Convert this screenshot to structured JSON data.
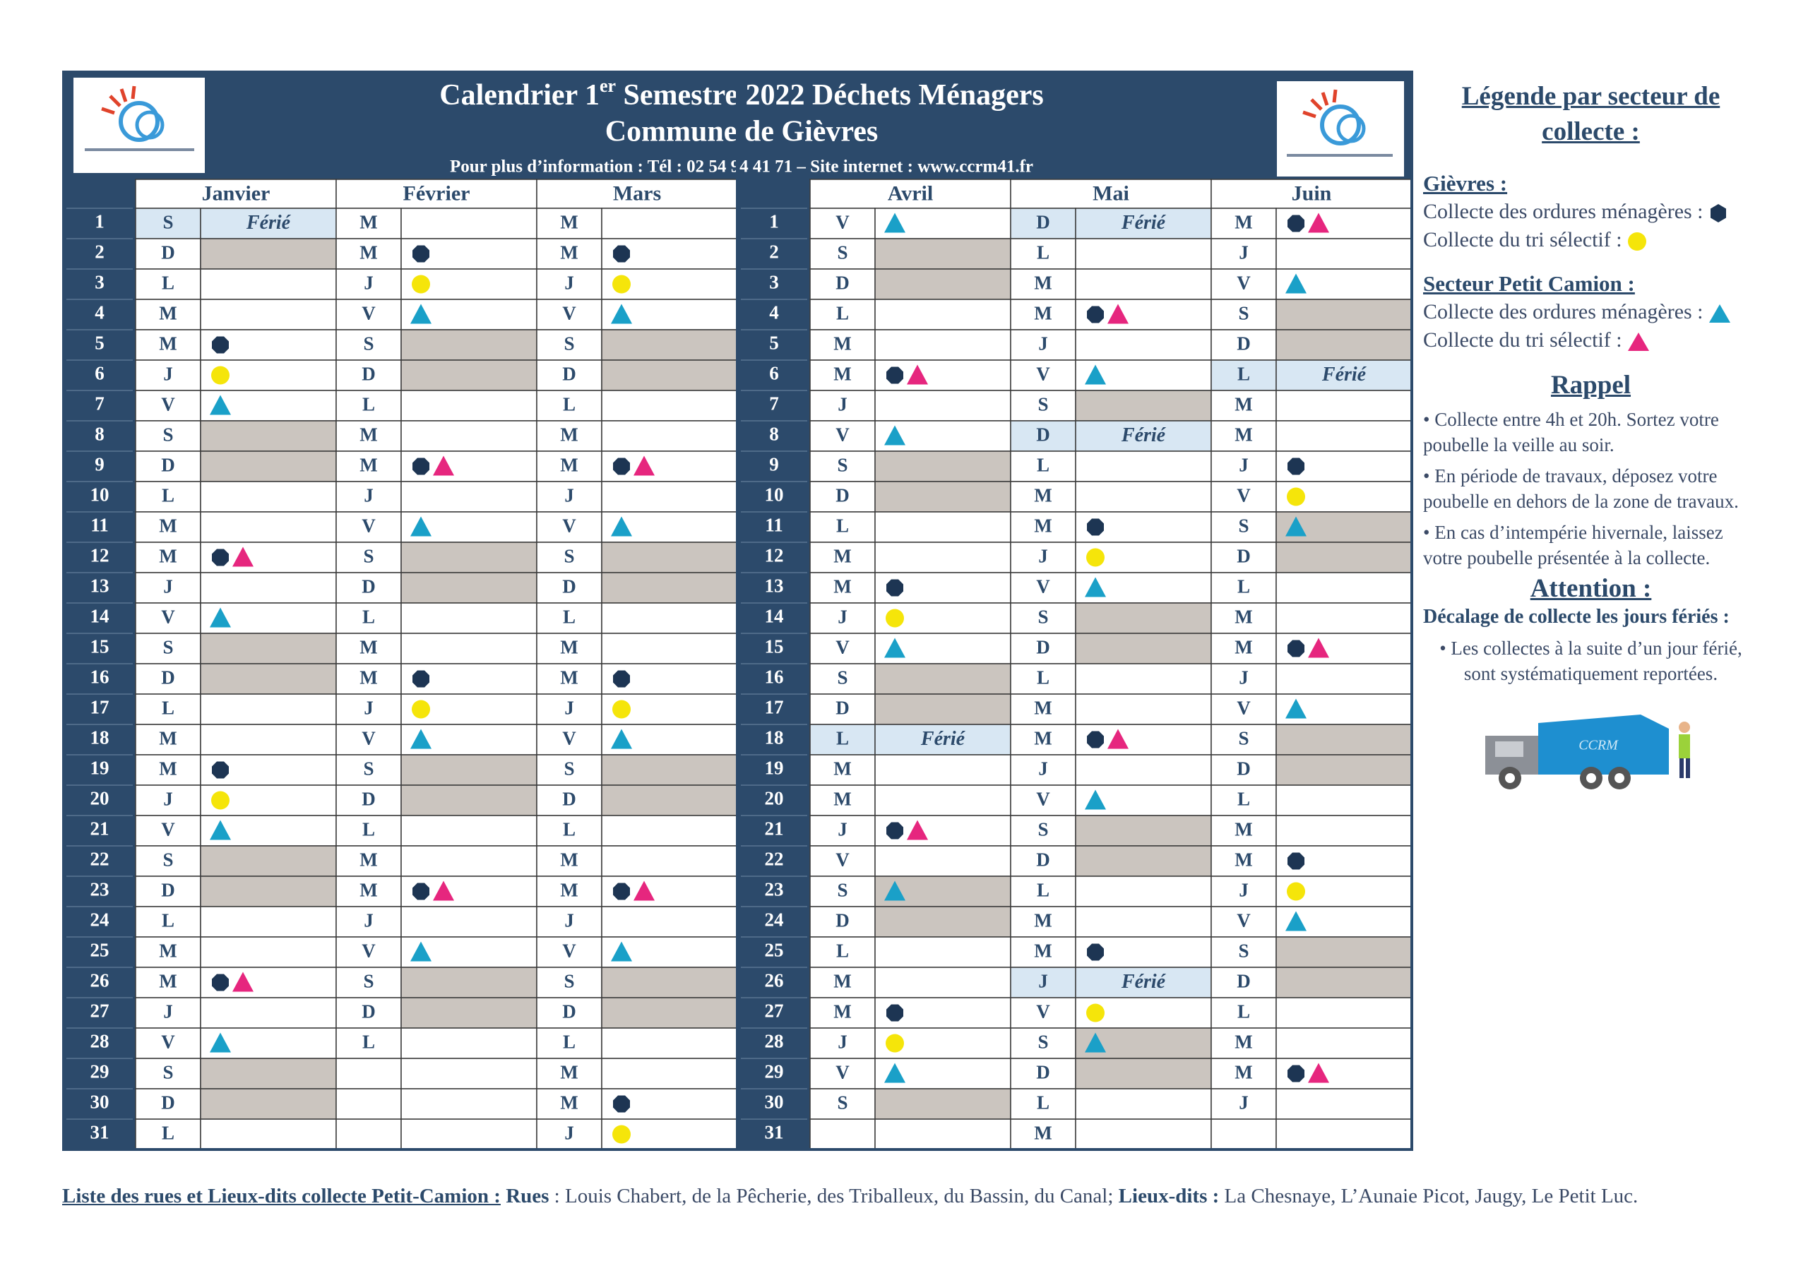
{
  "header": {
    "title_pre": "Calendrier 1",
    "title_sup": "er",
    "title_post": " Semestre 2022 Déchets Ménagers",
    "title_line2": "Commune de Gièvres",
    "info": "Pour plus d’information : Tél : 02 54 94 41 71 – Site internet : www.ccrm41.fr"
  },
  "row_numbers": [
    "1",
    "2",
    "3",
    "4",
    "5",
    "6",
    "7",
    "8",
    "9",
    "10",
    "11",
    "12",
    "13",
    "14",
    "15",
    "16",
    "17",
    "18",
    "19",
    "20",
    "21",
    "22",
    "23",
    "24",
    "25",
    "26",
    "27",
    "28",
    "29",
    "30",
    "31"
  ],
  "halves": [
    {
      "months": [
        {
          "name": "Janvier",
          "days": [
            {
              "letter": "S",
              "note": "Férié"
            },
            {
              "letter": "D"
            },
            {
              "letter": "L"
            },
            {
              "letter": "M"
            },
            {
              "letter": "M",
              "marks": [
                "hexagon"
              ]
            },
            {
              "letter": "J",
              "marks": [
                "circle"
              ]
            },
            {
              "letter": "V",
              "marks": [
                "triangle-blue"
              ]
            },
            {
              "letter": "S"
            },
            {
              "letter": "D"
            },
            {
              "letter": "L"
            },
            {
              "letter": "M"
            },
            {
              "letter": "M",
              "marks": [
                "hexagon",
                "triangle-pink"
              ]
            },
            {
              "letter": "J"
            },
            {
              "letter": "V",
              "marks": [
                "triangle-blue"
              ]
            },
            {
              "letter": "S"
            },
            {
              "letter": "D"
            },
            {
              "letter": "L"
            },
            {
              "letter": "M"
            },
            {
              "letter": "M",
              "marks": [
                "hexagon"
              ]
            },
            {
              "letter": "J",
              "marks": [
                "circle"
              ]
            },
            {
              "letter": "V",
              "marks": [
                "triangle-blue"
              ]
            },
            {
              "letter": "S"
            },
            {
              "letter": "D"
            },
            {
              "letter": "L"
            },
            {
              "letter": "M"
            },
            {
              "letter": "M",
              "marks": [
                "hexagon",
                "triangle-pink"
              ]
            },
            {
              "letter": "J"
            },
            {
              "letter": "V",
              "marks": [
                "triangle-blue"
              ]
            },
            {
              "letter": "S"
            },
            {
              "letter": "D"
            },
            {
              "letter": "L"
            }
          ]
        },
        {
          "name": "Février",
          "days": [
            {
              "letter": "M"
            },
            {
              "letter": "M",
              "marks": [
                "hexagon"
              ]
            },
            {
              "letter": "J",
              "marks": [
                "circle"
              ]
            },
            {
              "letter": "V",
              "marks": [
                "triangle-blue"
              ]
            },
            {
              "letter": "S"
            },
            {
              "letter": "D"
            },
            {
              "letter": "L"
            },
            {
              "letter": "M"
            },
            {
              "letter": "M",
              "marks": [
                "hexagon",
                "triangle-pink"
              ]
            },
            {
              "letter": "J"
            },
            {
              "letter": "V",
              "marks": [
                "triangle-blue"
              ]
            },
            {
              "letter": "S"
            },
            {
              "letter": "D"
            },
            {
              "letter": "L"
            },
            {
              "letter": "M"
            },
            {
              "letter": "M",
              "marks": [
                "hexagon"
              ]
            },
            {
              "letter": "J",
              "marks": [
                "circle"
              ]
            },
            {
              "letter": "V",
              "marks": [
                "triangle-blue"
              ]
            },
            {
              "letter": "S"
            },
            {
              "letter": "D"
            },
            {
              "letter": "L"
            },
            {
              "letter": "M"
            },
            {
              "letter": "M",
              "marks": [
                "hexagon",
                "triangle-pink"
              ]
            },
            {
              "letter": "J"
            },
            {
              "letter": "V",
              "marks": [
                "triangle-blue"
              ]
            },
            {
              "letter": "S"
            },
            {
              "letter": "D"
            },
            {
              "letter": "L"
            }
          ]
        },
        {
          "name": "Mars",
          "days": [
            {
              "letter": "M"
            },
            {
              "letter": "M",
              "marks": [
                "hexagon"
              ]
            },
            {
              "letter": "J",
              "marks": [
                "circle"
              ]
            },
            {
              "letter": "V",
              "marks": [
                "triangle-blue"
              ]
            },
            {
              "letter": "S"
            },
            {
              "letter": "D"
            },
            {
              "letter": "L"
            },
            {
              "letter": "M"
            },
            {
              "letter": "M",
              "marks": [
                "hexagon",
                "triangle-pink"
              ]
            },
            {
              "letter": "J"
            },
            {
              "letter": "V",
              "marks": [
                "triangle-blue"
              ]
            },
            {
              "letter": "S"
            },
            {
              "letter": "D"
            },
            {
              "letter": "L"
            },
            {
              "letter": "M"
            },
            {
              "letter": "M",
              "marks": [
                "hexagon"
              ]
            },
            {
              "letter": "J",
              "marks": [
                "circle"
              ]
            },
            {
              "letter": "V",
              "marks": [
                "triangle-blue"
              ]
            },
            {
              "letter": "S"
            },
            {
              "letter": "D"
            },
            {
              "letter": "L"
            },
            {
              "letter": "M"
            },
            {
              "letter": "M",
              "marks": [
                "hexagon",
                "triangle-pink"
              ]
            },
            {
              "letter": "J"
            },
            {
              "letter": "V",
              "marks": [
                "triangle-blue"
              ]
            },
            {
              "letter": "S"
            },
            {
              "letter": "D"
            },
            {
              "letter": "L"
            },
            {
              "letter": "M"
            },
            {
              "letter": "M",
              "marks": [
                "hexagon"
              ]
            },
            {
              "letter": "J",
              "marks": [
                "circle"
              ]
            }
          ]
        }
      ]
    },
    {
      "months": [
        {
          "name": "Avril",
          "days": [
            {
              "letter": "V",
              "marks": [
                "triangle-blue"
              ]
            },
            {
              "letter": "S"
            },
            {
              "letter": "D"
            },
            {
              "letter": "L"
            },
            {
              "letter": "M"
            },
            {
              "letter": "M",
              "marks": [
                "hexagon",
                "triangle-pink"
              ]
            },
            {
              "letter": "J"
            },
            {
              "letter": "V",
              "marks": [
                "triangle-blue"
              ]
            },
            {
              "letter": "S"
            },
            {
              "letter": "D"
            },
            {
              "letter": "L"
            },
            {
              "letter": "M"
            },
            {
              "letter": "M",
              "marks": [
                "hexagon"
              ]
            },
            {
              "letter": "J",
              "marks": [
                "circle"
              ]
            },
            {
              "letter": "V",
              "marks": [
                "triangle-blue"
              ]
            },
            {
              "letter": "S"
            },
            {
              "letter": "D"
            },
            {
              "letter": "L",
              "note": "Férié"
            },
            {
              "letter": "M"
            },
            {
              "letter": "M"
            },
            {
              "letter": "J",
              "marks": [
                "hexagon",
                "triangle-pink"
              ]
            },
            {
              "letter": "V"
            },
            {
              "letter": "S",
              "marks": [
                "triangle-blue"
              ]
            },
            {
              "letter": "D"
            },
            {
              "letter": "L"
            },
            {
              "letter": "M"
            },
            {
              "letter": "M",
              "marks": [
                "hexagon"
              ]
            },
            {
              "letter": "J",
              "marks": [
                "circle"
              ]
            },
            {
              "letter": "V",
              "marks": [
                "triangle-blue"
              ]
            },
            {
              "letter": "S"
            }
          ]
        },
        {
          "name": "Mai",
          "days": [
            {
              "letter": "D",
              "note": "Férié"
            },
            {
              "letter": "L"
            },
            {
              "letter": "M"
            },
            {
              "letter": "M",
              "marks": [
                "hexagon",
                "triangle-pink"
              ]
            },
            {
              "letter": "J"
            },
            {
              "letter": "V",
              "marks": [
                "triangle-blue"
              ]
            },
            {
              "letter": "S"
            },
            {
              "letter": "D",
              "note": "Férié"
            },
            {
              "letter": "L"
            },
            {
              "letter": "M"
            },
            {
              "letter": "M",
              "marks": [
                "hexagon"
              ]
            },
            {
              "letter": "J",
              "marks": [
                "circle"
              ]
            },
            {
              "letter": "V",
              "marks": [
                "triangle-blue"
              ]
            },
            {
              "letter": "S"
            },
            {
              "letter": "D"
            },
            {
              "letter": "L"
            },
            {
              "letter": "M"
            },
            {
              "letter": "M",
              "marks": [
                "hexagon",
                "triangle-pink"
              ]
            },
            {
              "letter": "J"
            },
            {
              "letter": "V",
              "marks": [
                "triangle-blue"
              ]
            },
            {
              "letter": "S"
            },
            {
              "letter": "D"
            },
            {
              "letter": "L"
            },
            {
              "letter": "M"
            },
            {
              "letter": "M",
              "marks": [
                "hexagon"
              ]
            },
            {
              "letter": "J",
              "note": "Férié"
            },
            {
              "letter": "V",
              "marks": [
                "circle"
              ]
            },
            {
              "letter": "S",
              "marks": [
                "triangle-blue"
              ]
            },
            {
              "letter": "D"
            },
            {
              "letter": "L"
            },
            {
              "letter": "M"
            }
          ]
        },
        {
          "name": "Juin",
          "days": [
            {
              "letter": "M",
              "marks": [
                "hexagon",
                "triangle-pink"
              ]
            },
            {
              "letter": "J"
            },
            {
              "letter": "V",
              "marks": [
                "triangle-blue"
              ]
            },
            {
              "letter": "S"
            },
            {
              "letter": "D"
            },
            {
              "letter": "L",
              "note": "Férié"
            },
            {
              "letter": "M"
            },
            {
              "letter": "M"
            },
            {
              "letter": "J",
              "marks": [
                "hexagon"
              ]
            },
            {
              "letter": "V",
              "marks": [
                "circle"
              ]
            },
            {
              "letter": "S",
              "marks": [
                "triangle-blue"
              ]
            },
            {
              "letter": "D"
            },
            {
              "letter": "L"
            },
            {
              "letter": "M"
            },
            {
              "letter": "M",
              "marks": [
                "hexagon",
                "triangle-pink"
              ]
            },
            {
              "letter": "J"
            },
            {
              "letter": "V",
              "marks": [
                "triangle-blue"
              ]
            },
            {
              "letter": "S"
            },
            {
              "letter": "D"
            },
            {
              "letter": "L"
            },
            {
              "letter": "M"
            },
            {
              "letter": "M",
              "marks": [
                "hexagon"
              ]
            },
            {
              "letter": "J",
              "marks": [
                "circle"
              ]
            },
            {
              "letter": "V",
              "marks": [
                "triangle-blue"
              ]
            },
            {
              "letter": "S"
            },
            {
              "letter": "D"
            },
            {
              "letter": "L"
            },
            {
              "letter": "M"
            },
            {
              "letter": "M",
              "marks": [
                "hexagon",
                "triangle-pink"
              ]
            },
            {
              "letter": "J"
            }
          ]
        }
      ]
    }
  ],
  "legend": {
    "title": "Légende par secteur de collecte :",
    "gievres": {
      "heading": "Gièvres :",
      "household": "Collecte des ordures ménagères :",
      "sorting": "Collecte du tri sélectif :"
    },
    "petit_camion": {
      "heading": "Secteur Petit Camion :",
      "household": "Collecte des ordures ménagères :",
      "sorting": "Collecte du tri sélectif :"
    },
    "rappel": {
      "heading": "Rappel",
      "items": [
        "• Collecte entre 4h et 20h. Sortez votre poubelle la veille au soir.",
        "• En période de travaux, déposez votre poubelle en dehors de la zone de travaux.",
        "• En cas d’intempérie hivernale, laissez votre poubelle présentée à la collecte."
      ]
    },
    "attention": {
      "heading": "Attention :",
      "subheading": "Décalage de collecte les jours fériés :",
      "items": [
        "• Les collectes à la suite d’un jour férié, sont systématiquement reportées."
      ]
    }
  },
  "truck_label": "CCRM",
  "footer": {
    "heading": "Liste des rues et Lieux-dits collecte Petit-Camion :",
    "rues_label": "Rues",
    "rues_text": ": Louis Chabert, de la Pêcherie, des Triballeux, du Bassin, du Canal;",
    "lieux_label": "Lieux-dits :",
    "lieux_text": "La Chesnaye, L’Aunaie Picot, Jaugy, Le Petit Luc."
  }
}
